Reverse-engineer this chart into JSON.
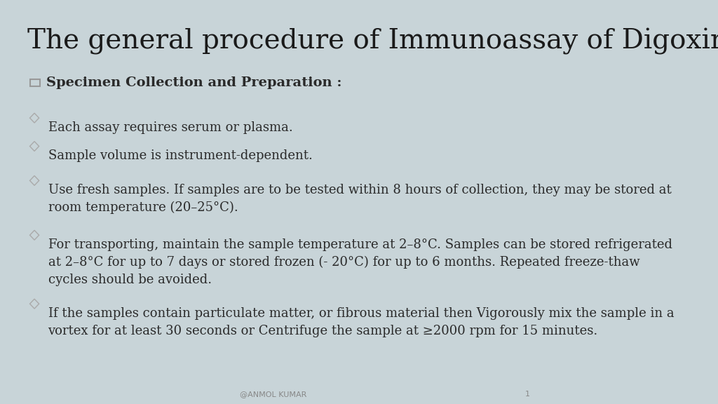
{
  "title": "The general procedure of Immunoassay of Digoxin",
  "background_color": "#c8d4d8",
  "title_color": "#1a1a1a",
  "title_fontsize": 28,
  "title_font": "serif",
  "section_header": "Specimen Collection and Preparation :",
  "section_header_fontsize": 14,
  "bullet_fontsize": 13,
  "bullet_color": "#2a2a2a",
  "bullet_points": [
    "Each assay requires serum or plasma.",
    "Sample volume is instrument-dependent.",
    "Use fresh samples. If samples are to be tested within 8 hours of collection, they may be stored at\nroom temperature (20–25°C).",
    "For transporting, maintain the sample temperature at 2–8°C. Samples can be stored refrigerated\nat 2–8°C for up to 7 days or stored frozen (- 20°C) for up to 6 months. Repeated freeze-thaw\ncycles should be avoided.",
    "If the samples contain particulate matter, or fibrous material then Vigorously mix the sample in a\nvortex for at least 30 seconds or Centrifuge the sample at ≥2000 rpm for 15 minutes."
  ],
  "footer_text": "@ANMOL KUMAR",
  "page_number": "1",
  "footer_color": "#888888",
  "footer_fontsize": 8,
  "checkbox_color": "#999999",
  "diamond_color": "#aaaaaa"
}
